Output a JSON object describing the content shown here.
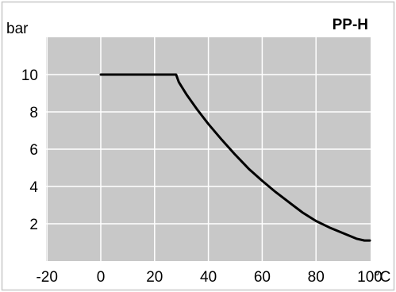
{
  "chart_data": {
    "type": "line",
    "title": "PP-H",
    "ylabel": "bar",
    "xunit": "°C",
    "xlim": [
      -20,
      100
    ],
    "ylim": [
      0,
      11
    ],
    "grid": true,
    "x_ticks": [
      -20,
      0,
      20,
      40,
      60,
      80,
      100
    ],
    "x_tick_labels": [
      "-20",
      "0",
      "20",
      "40",
      "60",
      "80",
      "100"
    ],
    "y_ticks": [
      2,
      4,
      6,
      8,
      10
    ],
    "y_tick_labels": [
      "2",
      "4",
      "6",
      "8",
      "10"
    ],
    "series": [
      {
        "x": [
          0,
          20,
          28,
          29,
          32,
          36,
          40,
          45,
          50,
          55,
          60,
          65,
          70,
          75,
          80,
          85,
          90,
          95,
          98,
          100
        ],
        "y": [
          10,
          10,
          10,
          9.6,
          8.9,
          8.1,
          7.35,
          6.5,
          5.7,
          4.95,
          4.3,
          3.7,
          3.15,
          2.6,
          2.15,
          1.8,
          1.5,
          1.2,
          1.1,
          1.1
        ]
      }
    ],
    "colors": {
      "plot_background": "#c8c8c8",
      "grid": "#ffffff",
      "line": "#000000",
      "frame": "#c8c8c8"
    }
  }
}
